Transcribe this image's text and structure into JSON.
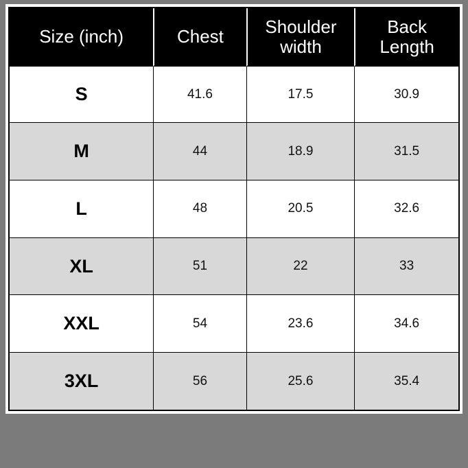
{
  "colors": {
    "bg": "#7b7b7b",
    "sheet": "#ffffff",
    "header-bg": "#000000",
    "header-text": "#ffffff",
    "row-alt": "#d8d8d8",
    "border": "#000000"
  },
  "chart_data": {
    "type": "table",
    "columns": [
      "Size (inch)",
      "Chest",
      "Shoulder width",
      "Back Length"
    ],
    "header_lines": [
      [
        "Size (inch)"
      ],
      [
        "Chest"
      ],
      [
        "Shoulder",
        "width"
      ],
      [
        "Back",
        "Length"
      ]
    ],
    "unit": "inch",
    "rows": [
      {
        "size": "S",
        "chest": 41.6,
        "shoulder_width": 17.5,
        "back_length": 30.9
      },
      {
        "size": "M",
        "chest": 44,
        "shoulder_width": 18.9,
        "back_length": 31.5
      },
      {
        "size": "L",
        "chest": 48,
        "shoulder_width": 20.5,
        "back_length": 32.6
      },
      {
        "size": "XL",
        "chest": 51,
        "shoulder_width": 22,
        "back_length": 33
      },
      {
        "size": "XXL",
        "chest": 54,
        "shoulder_width": 23.6,
        "back_length": 34.6
      },
      {
        "size": "3XL",
        "chest": 56,
        "shoulder_width": 25.6,
        "back_length": 35.4
      }
    ]
  }
}
